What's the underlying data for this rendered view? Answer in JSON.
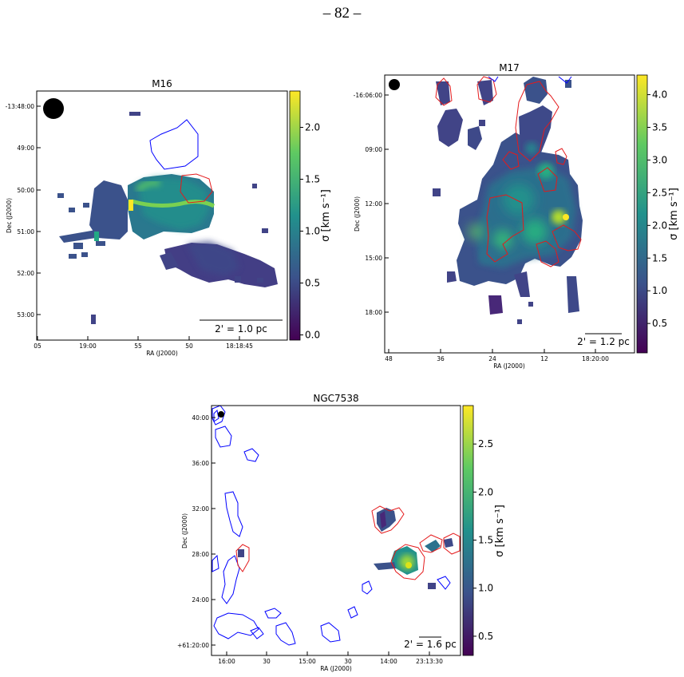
{
  "page": {
    "number": "– 82 –"
  },
  "colormap": {
    "name": "viridis",
    "stops": [
      "#440154",
      "#3b528b",
      "#21918c",
      "#5ec962",
      "#fde725"
    ]
  },
  "panels": [
    {
      "id": "m16",
      "title": "M16",
      "xlabel": "RA (J2000)",
      "ylabel": "Dec (J2000)",
      "xticks": [
        "05",
        "19:00",
        "55",
        "50",
        "18:18:45"
      ],
      "yticks": [
        "-13:48:00",
        "49:00",
        "50:00",
        "51:00",
        "52:00",
        "53:00"
      ],
      "scalebar": "2' = 1.0 pc",
      "colorbar": {
        "label": "σ [km s⁻¹]",
        "ticks": [
          "0.0",
          "0.5",
          "1.0",
          "1.5",
          "2.0"
        ],
        "range": [
          -0.05,
          2.35
        ]
      }
    },
    {
      "id": "m17",
      "title": "M17",
      "xlabel": "RA (J2000)",
      "ylabel": "Dec (J2000)",
      "xticks": [
        "48",
        "36",
        "24",
        "12",
        "18:20:00"
      ],
      "yticks": [
        "-16:06:00",
        "09:00",
        "12:00",
        "15:00",
        "18:00"
      ],
      "scalebar": "2' = 1.2 pc",
      "colorbar": {
        "label": "σ [km s⁻¹]",
        "ticks": [
          "0.5",
          "1.0",
          "1.5",
          "2.0",
          "2.5",
          "3.0",
          "3.5",
          "4.0"
        ],
        "range": [
          0.05,
          4.3
        ]
      }
    },
    {
      "id": "ngc7538",
      "title": "NGC7538",
      "xlabel": "RA (J2000)",
      "ylabel": "Dec (J2000)",
      "xticks": [
        "16:00",
        "30",
        "15:00",
        "30",
        "14:00",
        "23:13:30"
      ],
      "yticks": [
        "40:00",
        "36:00",
        "32:00",
        "28:00",
        "24:00",
        "+61:20:00"
      ],
      "scalebar": "2' = 1.6 pc",
      "colorbar": {
        "label": "σ [km s⁻¹]",
        "ticks": [
          "0.5",
          "1.0",
          "1.5",
          "2.0",
          "2.5"
        ],
        "range": [
          0.3,
          2.9
        ]
      }
    }
  ]
}
